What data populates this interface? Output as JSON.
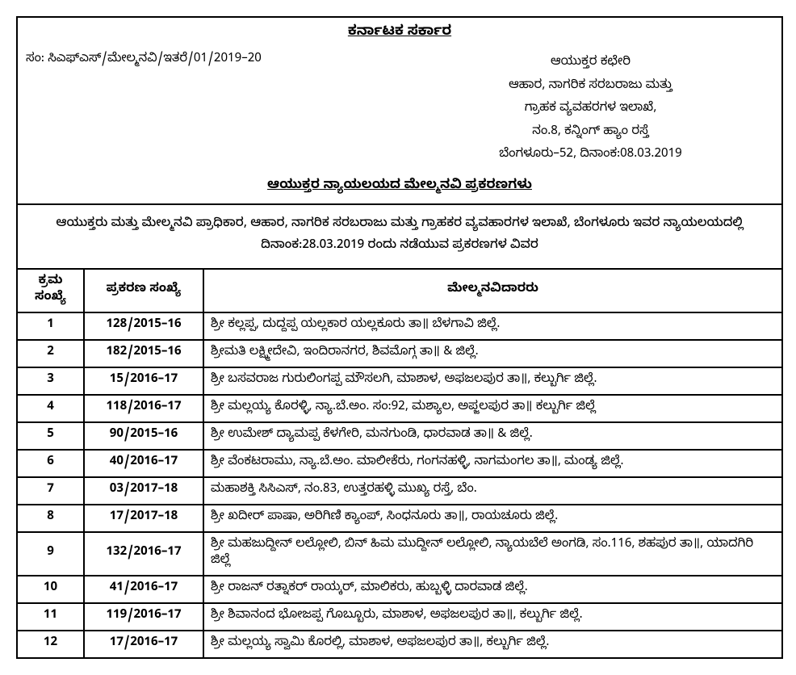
{
  "header": {
    "gov_title": "ಕರ್ನಾಟಕ ಸರ್ಕಾರ",
    "ref_no": "ಸಂ: ಸಿಎಫ್‌ಎಸ್/ಮೇಲ್ಮನವಿ/ಇತರೆ/01/2019–20",
    "office_line1": "ಆಯುಕ್ತರ ಕಛೇರಿ",
    "office_line2": "ಆಹಾರ, ನಾಗರಿಕ ಸರಬರಾಜು ಮತ್ತು",
    "office_line3": "ಗ್ರಾಹಕ ವ್ಯವಹರಗಳ ಇಲಾಖೆ,",
    "office_line4": "ನಂ.8, ಕನ್ನಿಂಗ್ ಹ್ಯಾಂ ರಸ್ತೆ",
    "office_line5": "ಬೆಂಗಳೂರು–52, ದಿನಾಂಕ:08.03.2019",
    "sub_title": "ಆಯುಕ್ತರ ನ್ಯಾಯಲಯದ ಮೇಲ್ಮನವಿ ಪ್ರಕರಣಗಳು"
  },
  "intro": {
    "line1": "ಆಯುಕ್ತರು ಮತ್ತು ಮೇಲ್ಮನವಿ ಪ್ರಾಧಿಕಾರ, ಆಹಾರ, ನಾಗರಿಕ ಸರಬರಾಜು ಮತ್ತು ಗ್ರಾಹಕರ ವ್ಯವಹಾರಗಳ ಇಲಾಖೆ, ಬೆಂಗಳೂರು ಇವರ ನ್ಯಾಯಲಯದಲ್ಲಿ",
    "line2": "ದಿನಾಂಕ:28.03.2019 ರಂದು ನಡೆಯುವ ಪ್ರಕರಣಗಳ ವಿವರ"
  },
  "table": {
    "col1": "ಕ್ರಮ ಸಂಖ್ಯೆ",
    "col2": "ಪ್ರಕರಣ ಸಂಖ್ಯೆ",
    "col3": "ಮೇಲ್ಮನವಿದಾರರು",
    "rows": [
      {
        "sl": "1",
        "case": "128/2015–16",
        "desc": "ಶ್ರೀ ಕಲ್ಲಪ್ಪ, ದುದ್ದಪ್ಪ ಯಲ್ಲಕಾರ ಯಲ್ಲಕೂರು ತಾ॥ ಬೆಳಗಾವಿ ಜಿಲ್ಲೆ."
      },
      {
        "sl": "2",
        "case": "182/2015–16",
        "desc": "ಶ್ರೀಮತಿ ಲಕ್ಷ್ಮೀದೇವಿ, ಇಂದಿರಾನಗರ, ಶಿವಮೊಗ್ಗ ತಾ॥ & ಜಿಲ್ಲೆ."
      },
      {
        "sl": "3",
        "case": "15/2016–17",
        "desc": "ಶ್ರೀ ಬಸವರಾಜ ಗುರುಲಿಂಗಪ್ಪ ಮೌಸಲಗಿ, ಮಾಶಾಳ, ಅಫಜಲಪುರ ತಾ॥, ಕಲ್ಬುರ್ಗಿ ಜಿಲ್ಲೆ."
      },
      {
        "sl": "4",
        "case": "118/2016–17",
        "desc": "ಶ್ರೀ ಮಲ್ಲಯ್ಯ ಕೊರಳ್ಳಿ, ನ್ಯಾ.ಬೆ.ಅಂ. ಸಂ:92, ಮಶ್ಯಾಲ, ಅಪ್ಜಲಪುರ ತಾ॥ ಕಲ್ಬುರ್ಗಿ ಜಿಲ್ಲೆ"
      },
      {
        "sl": "5",
        "case": "90/2015–16",
        "desc": "ಶ್ರೀ ಉಮೇಶ್ ದ್ಯಾಮಪ್ಪ ಕೆಳಗೇರಿ, ಮನಗುಂಡಿ, ಧಾರವಾಡ ತಾ॥ & ಜಿಲ್ಲೆ."
      },
      {
        "sl": "6",
        "case": "40/2016–17",
        "desc": "ಶ್ರೀ ವೆಂಕಟರಾಮು, ನ್ಯಾ.ಬೆ.ಅಂ. ಮಾಲೀಕೆರು, ಗಂಗನಹಳ್ಳಿ, ನಾಗಮಂಗಲ ತಾ॥, ಮಂಡ್ಯ ಜಿಲ್ಲೆ."
      },
      {
        "sl": "7",
        "case": "03/2017–18",
        "desc": "ಮಹಾಶಕ್ತಿ ಸಿಸಿಎಸ್‌, ನಂ.83, ಉತ್ತರಹಳ್ಳಿ ಮುಖ್ಯ ರಸ್ತೆ, ಬೆಂ."
      },
      {
        "sl": "8",
        "case": "17/2017–18",
        "desc": "ಶ್ರೀ ಖದೀರ್ ಪಾಷಾ, ಅರಿಗಿಣಿ ಕ್ಯಾಂಪ್, ಸಿಂಧನೂರು ತಾ॥, ರಾಯಚೂರು ಜಿಲ್ಲೆ."
      },
      {
        "sl": "9",
        "case": "132/2016–17",
        "desc": "ಶ್ರೀ ಮಹಜುದ್ದೀನ್ ಲಲ್ಲೋಲಿ, ಬಿನ್ ಹಿಮ ಮುದ್ದೀನ್ ಲಲ್ಲೋಲಿ, ನ್ಯಾಯಬೆಲೆ ಅಂಗಡಿ, ಸಂ.116, ಶಹಪುರ ತಾ॥, ಯಾದಗಿರಿ ಜಿಲ್ಲೆ"
      },
      {
        "sl": "10",
        "case": "41/2016–17",
        "desc": "ಶ್ರೀ ರಾಜನ್ ರತ್ನಾಕರ್ ರಾಯ್ಕರ್, ಮಾಲಿಕರು, ಹುಬ್ಬಳ್ಳಿ ದಾರವಾಡ ಜಿಲ್ಲೆ."
      },
      {
        "sl": "11",
        "case": "119/2016–17",
        "desc": "ಶ್ರೀ ಶಿವಾನಂದ ಭೋಜಪ್ಪ ಗೊಬ್ಬೂರು, ಮಾಶಾಳ, ಅಫಜಲಪುರ ತಾ॥, ಕಲ್ಬುರ್ಗಿ ಜಿಲ್ಲೆ."
      },
      {
        "sl": "12",
        "case": "17/2016–17",
        "desc": "ಶ್ರೀ ಮಲ್ಲಯ್ಯ ಸ್ವಾಮಿ ಕೊರಲ್ಲಿ, ಮಾಶಾಳ, ಅಫಜಲಪುರ ತಾ॥, ಕಲ್ಬುರ್ಗಿ ಜಿಲ್ಲೆ."
      }
    ]
  }
}
